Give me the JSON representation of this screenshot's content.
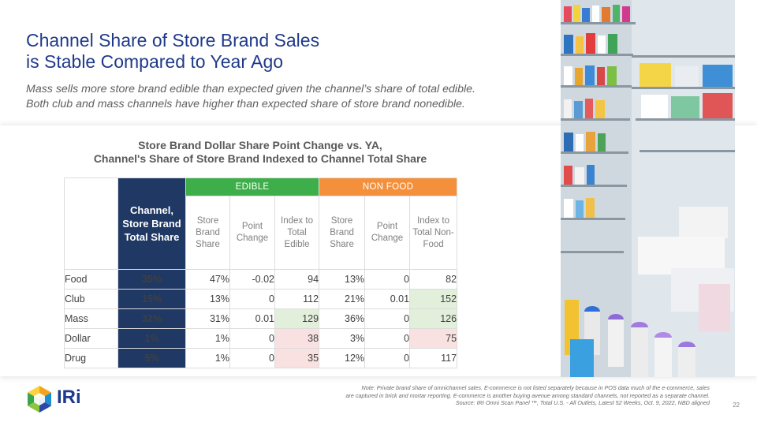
{
  "slide": {
    "title_line1": "Channel Share of Store Brand Sales",
    "title_line2": "is Stable Compared to Year Ago",
    "subtitle_line1": "Mass sells more store brand edible than expected given the channel’s share of total edible.",
    "subtitle_line2": "Both club and mass channels have higher than expected share of store brand nonedible."
  },
  "table": {
    "title_line1": "Store Brand Dollar Share Point Change vs. YA,",
    "title_line2": "Channel's Share of Store Brand Indexed to Channel Total Share",
    "band_edible": "EDIBLE",
    "band_nonfood": "NON FOOD",
    "channel_header": [
      "Channel,",
      "Store Brand",
      "Total Share"
    ],
    "edible_headers": [
      [
        "Store",
        "Brand",
        "Share"
      ],
      [
        "Point",
        "Change"
      ],
      [
        "Index to",
        "Total",
        "Edible"
      ]
    ],
    "nonfood_headers": [
      [
        "Store",
        "Brand",
        "Share"
      ],
      [
        "Point",
        "Change"
      ],
      [
        "Index to",
        "Total Non-",
        "Food"
      ]
    ],
    "rows": [
      {
        "label": "Food",
        "channel_share": "35%",
        "e_share": "47%",
        "e_change": "-0.02",
        "e_index": "94",
        "n_share": "13%",
        "n_change": "0",
        "n_index": "82"
      },
      {
        "label": "Club",
        "channel_share": "15%",
        "e_share": "13%",
        "e_change": "0",
        "e_index": "112",
        "n_share": "21%",
        "n_change": "0.01",
        "n_index": "152"
      },
      {
        "label": "Mass",
        "channel_share": "32%",
        "e_share": "31%",
        "e_change": "0.01",
        "e_index": "129",
        "n_share": "36%",
        "n_change": "0",
        "n_index": "126"
      },
      {
        "label": "Dollar",
        "channel_share": "1%",
        "e_share": "1%",
        "e_change": "0",
        "e_index": "38",
        "n_share": "3%",
        "n_change": "0",
        "n_index": "75"
      },
      {
        "label": "Drug",
        "channel_share": "5%",
        "e_share": "1%",
        "e_change": "0",
        "e_index": "35",
        "n_share": "12%",
        "n_change": "0",
        "n_index": "117"
      }
    ]
  },
  "footer": {
    "logo_text": "IRi",
    "note_line1": "Note: Private brand share of omnichannel sales. E-commerce is not listed separately because in POS data much of the e-commerce, sales",
    "note_line2": "are captured in brick and mortar reporting. E-commerce is another buying avenue among standard channels, not reported as a separate channel.",
    "source": "Source: IRI  Omni Scan Panel ™, Total U.S. - All Outlets, Latest 52 Weeks, Oct. 9, 2022, NBD aligned",
    "page_number": "22"
  },
  "colors": {
    "title": "#1f3a8a",
    "navy_column": "#1f3864",
    "edible_band": "#3dae49",
    "nonfood_band": "#f4903b",
    "negative": "#e1262d",
    "positive": "#2e9e47",
    "highlight_high": "#e2efda",
    "highlight_low": "#f8e1e0"
  },
  "icons": {
    "logo": "iri-hexagon-logo",
    "photo": "store-shelves-photo"
  }
}
